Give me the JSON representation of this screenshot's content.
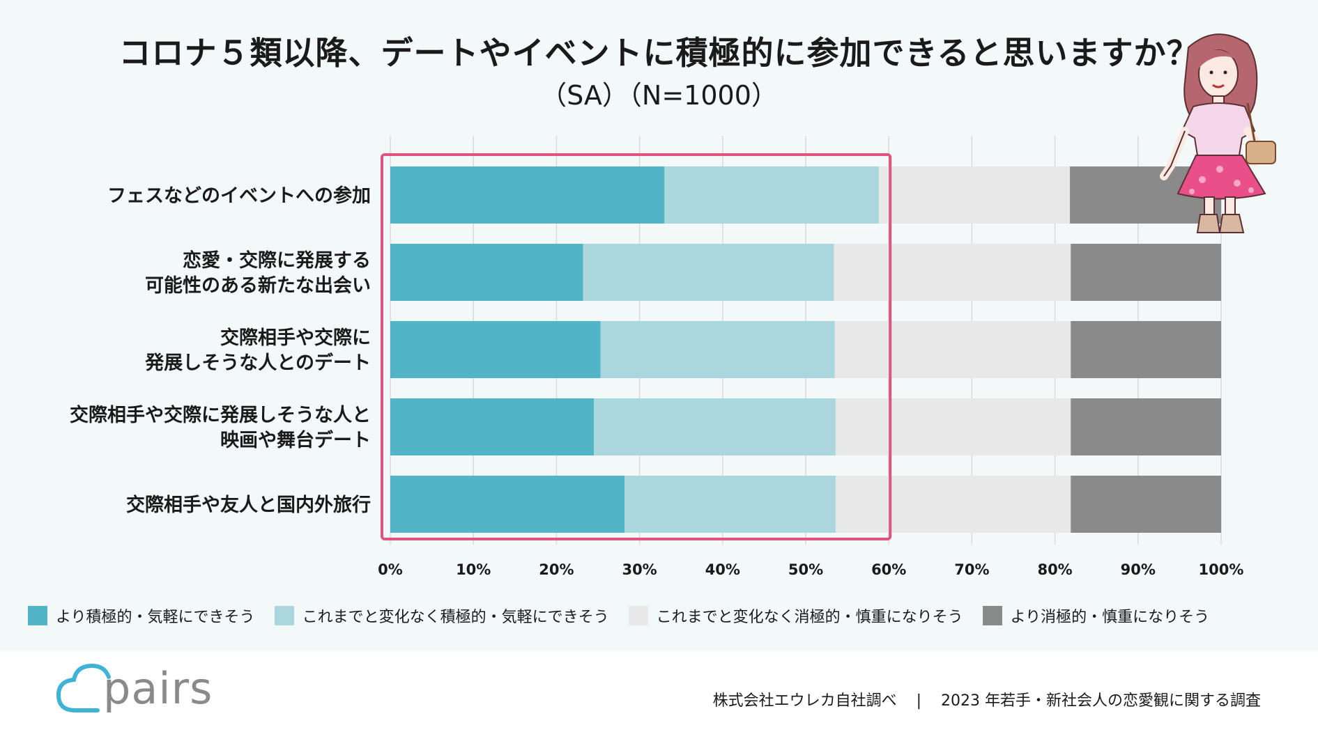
{
  "title": "コロナ５類以降、デートやイベントに積極的に参加できると思いますか？",
  "subtitle": "（SA）（N=1000）",
  "colors": {
    "more_active": "#52b4c7",
    "same_active": "#aad6de",
    "same_passive": "#e8e8e8",
    "more_passive": "#8a8a8a",
    "highlight": "#e0537e",
    "logo": "#3fb3d6"
  },
  "chart_data": {
    "type": "bar",
    "orientation": "horizontal",
    "stacked": true,
    "percent": true,
    "categories": [
      [
        "フェスなどのイベントへの参加"
      ],
      [
        "恋愛・交際に発展する",
        "可能性のある新たな出会い"
      ],
      [
        "交際相手や交際に",
        "発展しそうな人とのデート"
      ],
      [
        "交際相手や交際に発展しそうな人と",
        "映画や舞台デート"
      ],
      [
        "交際相手や友人と国内外旅行"
      ]
    ],
    "series": [
      {
        "name": "より積極的・気軽にできそう",
        "values": [
          33,
          23.2,
          25.3,
          24.5,
          28.2
        ]
      },
      {
        "name": "これまでと変化なく積極的・気軽にできそう",
        "values": [
          25.8,
          30.2,
          28.2,
          29.1,
          25.4
        ]
      },
      {
        "name": "これまでと変化なく消極的・慎重になりそう",
        "values": [
          23,
          28.5,
          28.4,
          28.3,
          28.3
        ]
      },
      {
        "name": "より消極的・慎重になりそう",
        "values": [
          18.2,
          18.1,
          18.1,
          18.1,
          18.1
        ]
      }
    ],
    "xlim": [
      0,
      100
    ],
    "xticks": [
      "0%",
      "10%",
      "20%",
      "30%",
      "40%",
      "50%",
      "60%",
      "70%",
      "80%",
      "90%",
      "100%"
    ],
    "grid": true,
    "legend_position": "bottom",
    "highlight_range": [
      0,
      60
    ]
  },
  "footer": {
    "logo_text": "pairs",
    "source": "株式会社エウレカ自社調べ",
    "separator": "|",
    "survey": "2023 年若手・新社会人の恋愛観に関する調査"
  }
}
